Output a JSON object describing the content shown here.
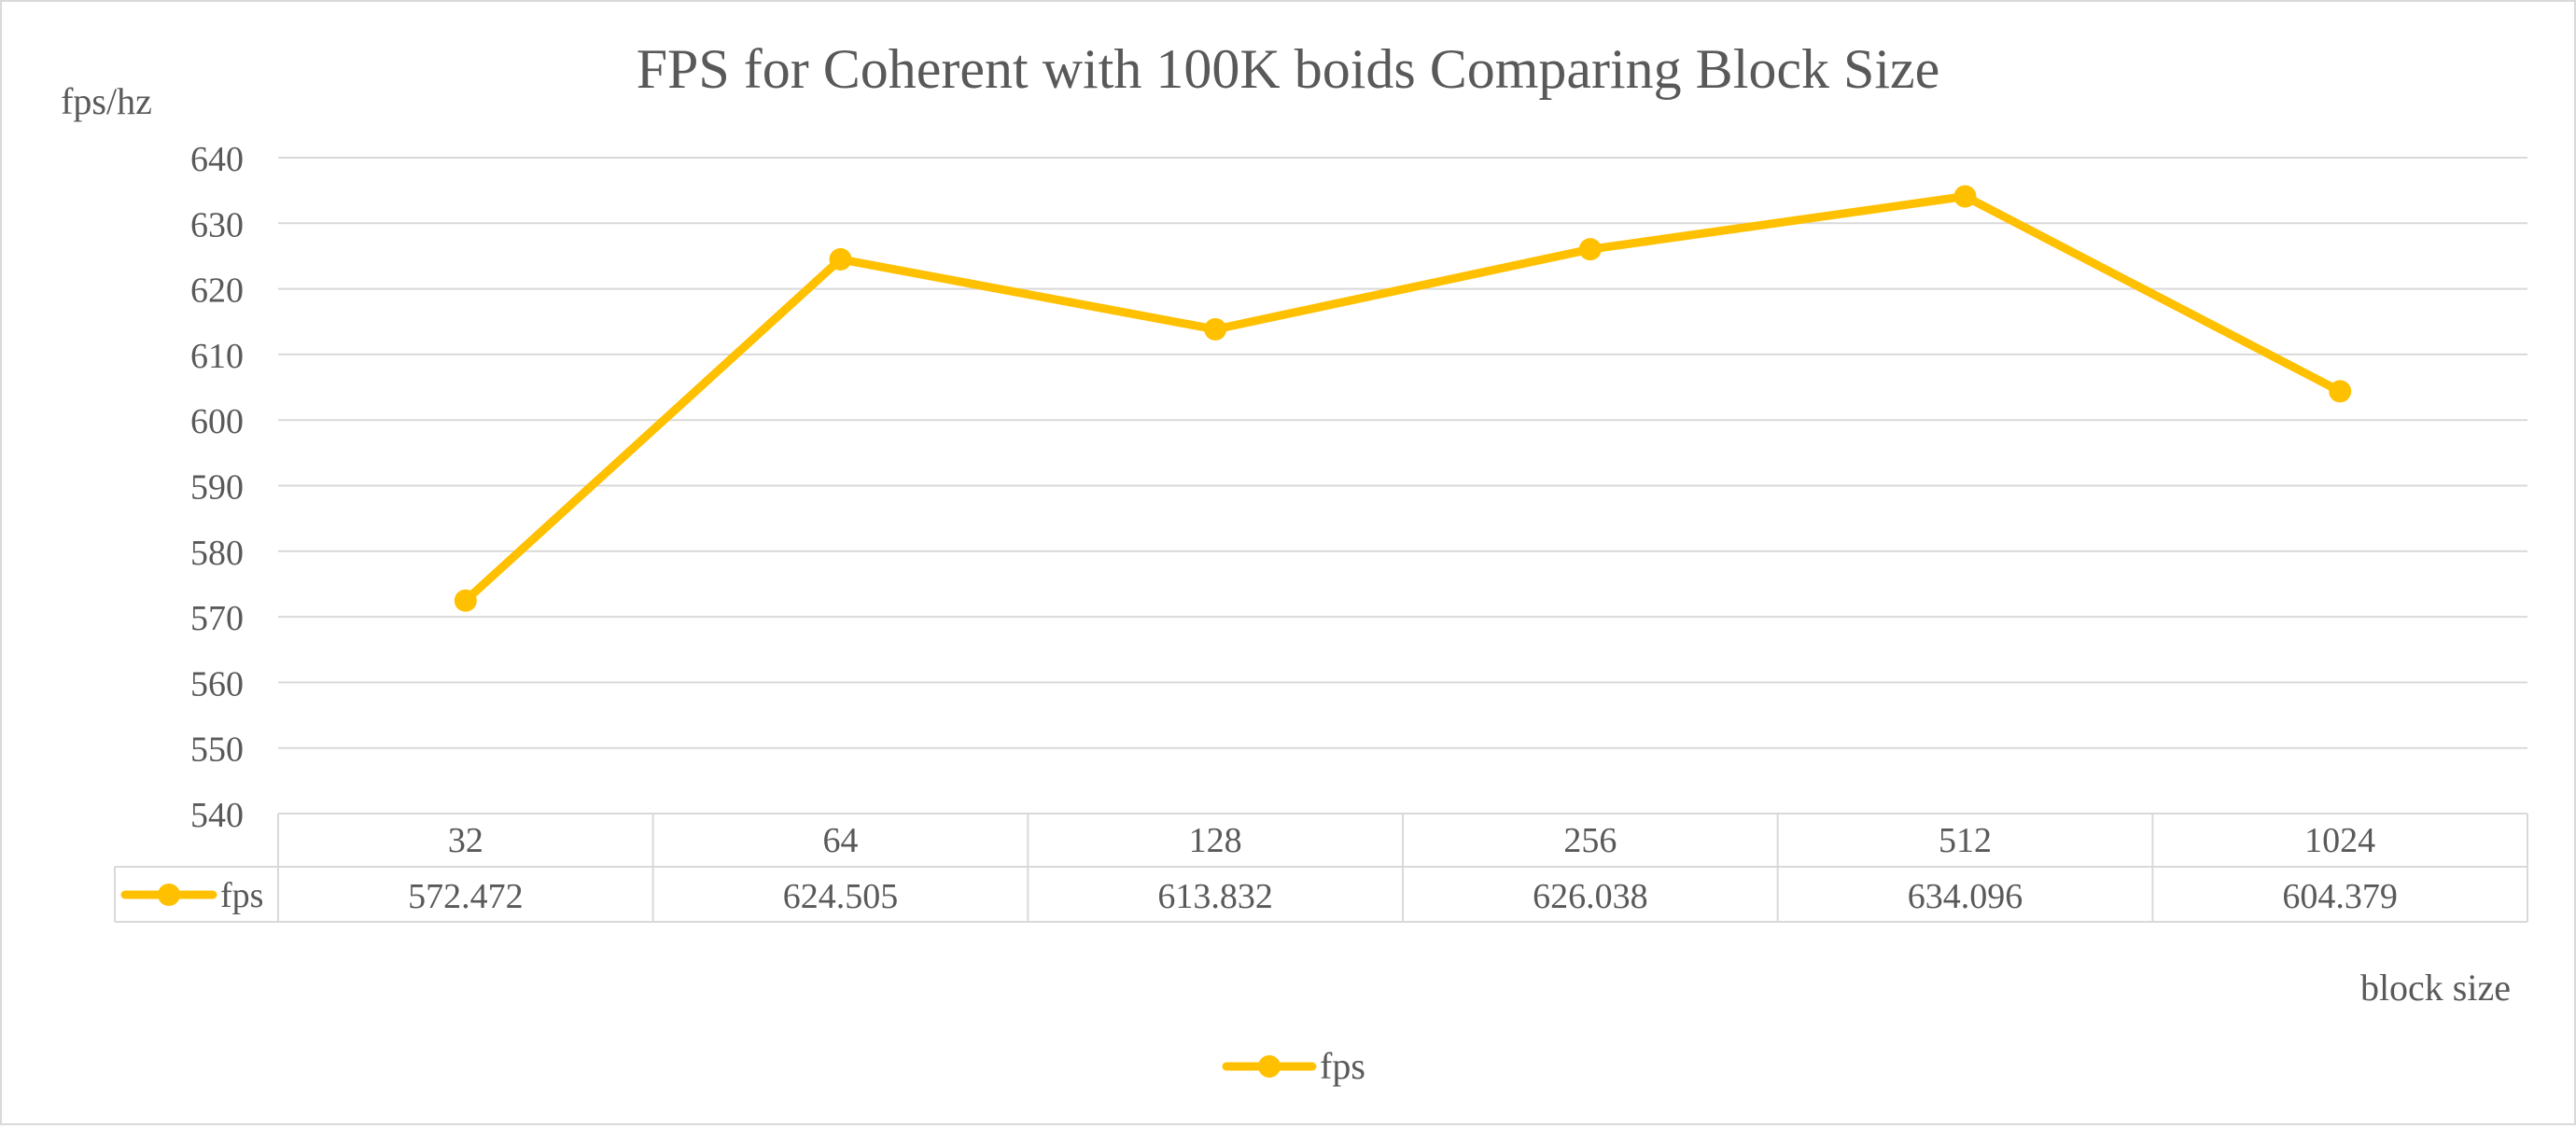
{
  "chart_data": {
    "type": "line",
    "title": "FPS for Coherent with 100K boids Comparing Block Size",
    "xlabel": "block size",
    "ylabel": "fps/hz",
    "categories": [
      "32",
      "64",
      "128",
      "256",
      "512",
      "1024"
    ],
    "series": [
      {
        "name": "fps",
        "values": [
          572.472,
          624.505,
          613.832,
          626.038,
          634.096,
          604.379
        ],
        "value_labels": [
          "572.472",
          "624.505",
          "613.832",
          "626.038",
          "634.096",
          "604.379"
        ],
        "color": "#ffc000"
      }
    ],
    "ylim": [
      540,
      640
    ],
    "yticks": [
      540,
      550,
      560,
      570,
      580,
      590,
      600,
      610,
      620,
      630,
      640
    ],
    "grid": true,
    "legend_position": "bottom",
    "data_table": true,
    "colors": {
      "line": "#ffc000",
      "grid": "#d9d9d9",
      "text": "#595959",
      "border": "#d9d9d9"
    }
  }
}
